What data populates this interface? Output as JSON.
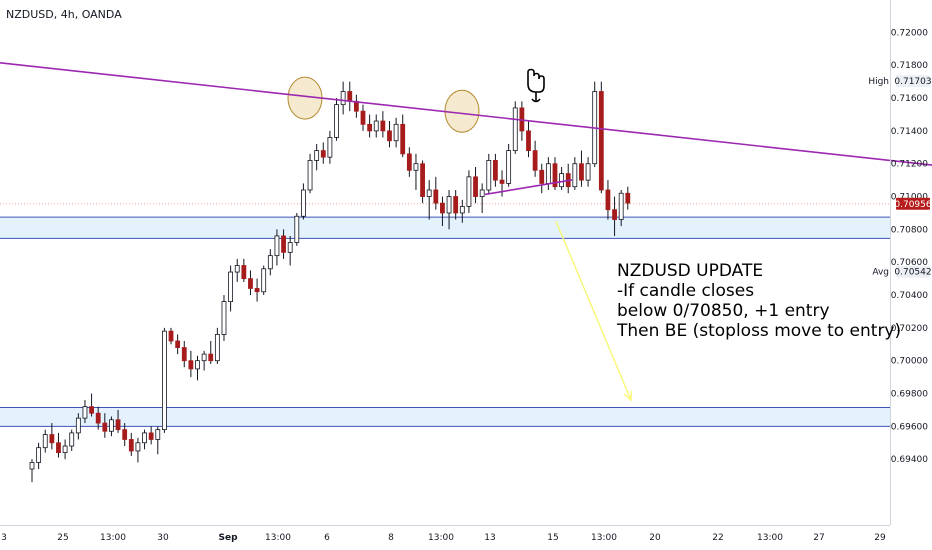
{
  "header": {
    "symbol_title": "NZDUSD, 4h, OANDA"
  },
  "chart_data": {
    "type": "candlestick",
    "title": "NZDUSD, 4h, OANDA",
    "colors": {
      "up": "#ffffff",
      "down": "#a61c1c",
      "wick": "#131722",
      "trendline": "#9c27b0",
      "zone_fill": "#e3f2fd",
      "zone_border": "#3f51b5",
      "arrow": "#f7f776",
      "current_price_line": "#f2a0a0",
      "price_badge": "#b71c1c",
      "circle_fill": "#f3e6c8",
      "circle_stroke": "#b58a2e"
    },
    "ylim": [
      0.692,
      0.721
    ],
    "y_ticks": [
      "0.72000",
      "0.71800",
      "0.71600",
      "0.71400",
      "0.71200",
      "0.71000",
      "0.70800",
      "0.70600",
      "0.70400",
      "0.70200",
      "0.70000",
      "0.69800",
      "0.69600",
      "0.69400"
    ],
    "x_ticks": [
      "3",
      "25",
      "13:00",
      "30",
      "Sep",
      "13:00",
      "6",
      "8",
      "13:00",
      "13",
      "15",
      "13:00",
      "20",
      "22",
      "13:00",
      "27",
      "29"
    ],
    "price_badges": [
      {
        "label": "High",
        "value": "0.71703"
      },
      {
        "label": "",
        "value": "0.70956"
      },
      {
        "label": "Avg",
        "value": "0.70542"
      }
    ],
    "candles": [
      [
        0.6934,
        0.694,
        0.6926,
        0.6938
      ],
      [
        0.6938,
        0.695,
        0.6934,
        0.6947
      ],
      [
        0.6947,
        0.6958,
        0.6944,
        0.6955
      ],
      [
        0.6955,
        0.6962,
        0.6946,
        0.695
      ],
      [
        0.695,
        0.6956,
        0.6941,
        0.6944
      ],
      [
        0.6944,
        0.6952,
        0.694,
        0.6948
      ],
      [
        0.6948,
        0.6958,
        0.6945,
        0.6956
      ],
      [
        0.6956,
        0.6968,
        0.6952,
        0.6965
      ],
      [
        0.6965,
        0.6976,
        0.6962,
        0.6972
      ],
      [
        0.6972,
        0.698,
        0.6966,
        0.6968
      ],
      [
        0.6968,
        0.6972,
        0.6958,
        0.6962
      ],
      [
        0.6962,
        0.6968,
        0.6953,
        0.6957
      ],
      [
        0.6957,
        0.6966,
        0.6954,
        0.6964
      ],
      [
        0.6964,
        0.697,
        0.6956,
        0.6958
      ],
      [
        0.6958,
        0.6962,
        0.6948,
        0.6952
      ],
      [
        0.6952,
        0.6956,
        0.6942,
        0.6945
      ],
      [
        0.6945,
        0.6953,
        0.6938,
        0.695
      ],
      [
        0.695,
        0.6958,
        0.6946,
        0.6956
      ],
      [
        0.6956,
        0.696,
        0.6949,
        0.6952
      ],
      [
        0.6952,
        0.696,
        0.6943,
        0.6958
      ],
      [
        0.6958,
        0.702,
        0.6956,
        0.7018
      ],
      [
        0.7018,
        0.702,
        0.701,
        0.7012
      ],
      [
        0.7012,
        0.7016,
        0.7004,
        0.7008
      ],
      [
        0.7008,
        0.7012,
        0.6996,
        0.7
      ],
      [
        0.7,
        0.7006,
        0.699,
        0.6995
      ],
      [
        0.6995,
        0.7003,
        0.6988,
        0.7
      ],
      [
        0.7,
        0.7006,
        0.6994,
        0.7004
      ],
      [
        0.7004,
        0.7012,
        0.6998,
        0.7
      ],
      [
        0.7,
        0.702,
        0.6998,
        0.7016
      ],
      [
        0.7016,
        0.704,
        0.7012,
        0.7036
      ],
      [
        0.7036,
        0.7058,
        0.703,
        0.7054
      ],
      [
        0.7054,
        0.7062,
        0.7048,
        0.7058
      ],
      [
        0.7058,
        0.7062,
        0.7048,
        0.705
      ],
      [
        0.705,
        0.7055,
        0.704,
        0.7044
      ],
      [
        0.7044,
        0.705,
        0.7036,
        0.7042
      ],
      [
        0.7042,
        0.7058,
        0.704,
        0.7056
      ],
      [
        0.7056,
        0.7068,
        0.7052,
        0.7064
      ],
      [
        0.7064,
        0.708,
        0.7058,
        0.7076
      ],
      [
        0.7076,
        0.708,
        0.7062,
        0.7066
      ],
      [
        0.7066,
        0.7076,
        0.7058,
        0.7072
      ],
      [
        0.7072,
        0.709,
        0.707,
        0.7088
      ],
      [
        0.7088,
        0.7108,
        0.7086,
        0.7104
      ],
      [
        0.7104,
        0.7126,
        0.7102,
        0.7122
      ],
      [
        0.7122,
        0.7132,
        0.7116,
        0.7128
      ],
      [
        0.7128,
        0.7133,
        0.712,
        0.7124
      ],
      [
        0.7124,
        0.714,
        0.712,
        0.7136
      ],
      [
        0.7136,
        0.716,
        0.7134,
        0.7156
      ],
      [
        0.7156,
        0.717,
        0.715,
        0.7164
      ],
      [
        0.7164,
        0.717,
        0.7152,
        0.7158
      ],
      [
        0.7158,
        0.7162,
        0.7148,
        0.7152
      ],
      [
        0.7152,
        0.7156,
        0.714,
        0.7144
      ],
      [
        0.7144,
        0.715,
        0.7136,
        0.714
      ],
      [
        0.714,
        0.715,
        0.7136,
        0.7146
      ],
      [
        0.7146,
        0.7152,
        0.7136,
        0.714
      ],
      [
        0.714,
        0.7146,
        0.713,
        0.7134
      ],
      [
        0.7134,
        0.7148,
        0.713,
        0.7144
      ],
      [
        0.7144,
        0.715,
        0.7124,
        0.7126
      ],
      [
        0.7126,
        0.713,
        0.7112,
        0.7116
      ],
      [
        0.7116,
        0.7126,
        0.7104,
        0.712
      ],
      [
        0.712,
        0.7122,
        0.7096,
        0.71
      ],
      [
        0.71,
        0.711,
        0.7086,
        0.7104
      ],
      [
        0.7104,
        0.7112,
        0.7092,
        0.7096
      ],
      [
        0.7096,
        0.71,
        0.7082,
        0.709
      ],
      [
        0.709,
        0.7104,
        0.708,
        0.71
      ],
      [
        0.71,
        0.7104,
        0.7086,
        0.709
      ],
      [
        0.709,
        0.7098,
        0.7084,
        0.7094
      ],
      [
        0.7094,
        0.7116,
        0.709,
        0.7112
      ],
      [
        0.7112,
        0.7118,
        0.7096,
        0.71
      ],
      [
        0.71,
        0.7108,
        0.709,
        0.7104
      ],
      [
        0.7104,
        0.7126,
        0.7102,
        0.7122
      ],
      [
        0.7122,
        0.7126,
        0.7106,
        0.711
      ],
      [
        0.711,
        0.7116,
        0.71,
        0.7108
      ],
      [
        0.7108,
        0.7132,
        0.7106,
        0.7128
      ],
      [
        0.7128,
        0.7158,
        0.7126,
        0.7154
      ],
      [
        0.7154,
        0.7158,
        0.7134,
        0.714
      ],
      [
        0.714,
        0.7146,
        0.7124,
        0.7128
      ],
      [
        0.7128,
        0.7134,
        0.7112,
        0.7116
      ],
      [
        0.7116,
        0.712,
        0.7102,
        0.7108
      ],
      [
        0.7108,
        0.7124,
        0.7104,
        0.712
      ],
      [
        0.712,
        0.7124,
        0.7104,
        0.7106
      ],
      [
        0.7106,
        0.7118,
        0.7104,
        0.7114
      ],
      [
        0.7114,
        0.712,
        0.7102,
        0.7106
      ],
      [
        0.7106,
        0.7124,
        0.7104,
        0.712
      ],
      [
        0.712,
        0.7128,
        0.7106,
        0.711
      ],
      [
        0.711,
        0.7124,
        0.7106,
        0.712
      ],
      [
        0.712,
        0.717,
        0.7118,
        0.7164
      ],
      [
        0.7164,
        0.717,
        0.7102,
        0.7104
      ],
      [
        0.7104,
        0.711,
        0.7086,
        0.7092
      ],
      [
        0.7092,
        0.71,
        0.7076,
        0.7086
      ],
      [
        0.7086,
        0.7104,
        0.7082,
        0.7102
      ],
      [
        0.7102,
        0.7106,
        0.7092,
        0.7096
      ]
    ],
    "zones": [
      {
        "top": 0.70875,
        "bottom": 0.70745
      },
      {
        "top": 0.69715,
        "bottom": 0.696
      }
    ],
    "trendlines": [
      {
        "points": [
          [
            0,
            0.71815
          ],
          [
            932,
            0.71192
          ]
        ]
      },
      {
        "points": [
          [
            485,
            0.71013
          ],
          [
            572,
            0.71101
          ]
        ]
      }
    ],
    "current_price": 0.70956,
    "arrow": {
      "from": [
        556,
        0.7085
      ],
      "to": [
        631,
        0.6976
      ]
    },
    "circles": [
      {
        "cx": 305,
        "cy": 0.716
      },
      {
        "cx": 462,
        "cy": 0.7152
      }
    ]
  },
  "annotation": {
    "line1": "NZDUSD UPDATE",
    "line2": "-If candle closes",
    "line3": "below 0/70850, +1 entry",
    "line4": "Then BE (stoploss move to entry)"
  }
}
